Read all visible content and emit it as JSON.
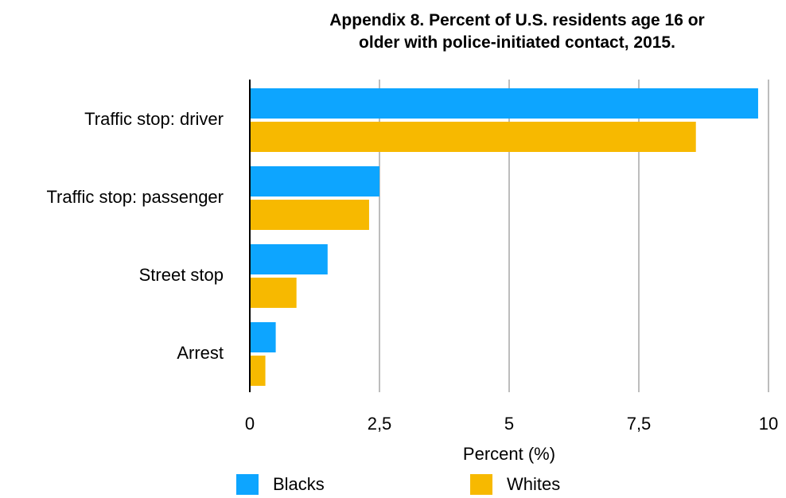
{
  "title_line1": "Appendix 8. Percent of U.S. residents age 16 or",
  "title_line2": "older with police-initiated contact, 2015.",
  "chart_data": {
    "type": "bar",
    "orientation": "horizontal",
    "title": "Appendix 8. Percent of U.S. residents age 16 or older with police-initiated contact, 2015.",
    "xlabel": "Percent (%)",
    "ylabel": "",
    "categories": [
      "Traffic stop: driver",
      "Traffic stop: passenger",
      "Street stop",
      "Arrest"
    ],
    "series": [
      {
        "name": "Blacks",
        "color": "#0DA5FF",
        "values": [
          9.8,
          2.5,
          1.5,
          0.5
        ]
      },
      {
        "name": "Whites",
        "color": "#F7B900",
        "values": [
          8.6,
          2.3,
          0.9,
          0.3
        ]
      }
    ],
    "xlim": [
      0,
      10
    ],
    "xticks": [
      0,
      2.5,
      5,
      7.5,
      10
    ],
    "xtick_labels": [
      "0",
      "2,5",
      "5",
      "7,5",
      "10"
    ],
    "grid": "vertical",
    "legend_position": "bottom"
  }
}
